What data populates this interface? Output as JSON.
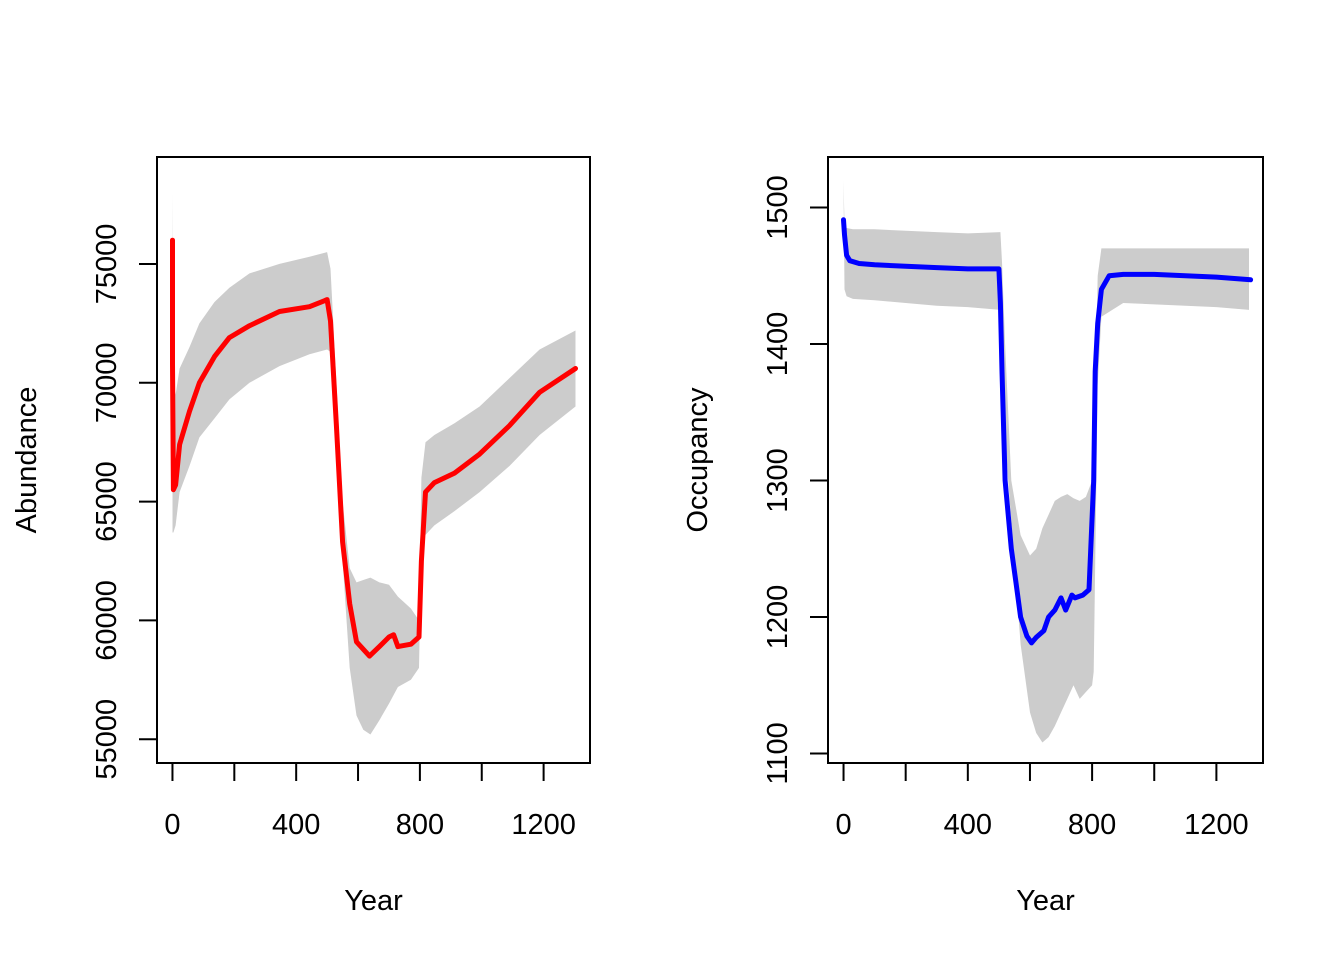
{
  "chart_data": [
    {
      "type": "line",
      "title": "",
      "xlabel": "Year",
      "ylabel": "Abundance",
      "xlim": [
        -50,
        1350
      ],
      "ylim": [
        54000,
        79500
      ],
      "xticks": [
        0,
        200,
        400,
        600,
        800,
        1000,
        1200
      ],
      "xtick_labels": [
        "0",
        "",
        "400",
        "",
        "800",
        "",
        "1200"
      ],
      "yticks": [
        55000,
        60000,
        65000,
        70000,
        75000
      ],
      "ytick_labels": [
        "55000",
        "60000",
        "65000",
        "70000",
        "75000"
      ],
      "grid": false,
      "legend": "none",
      "series": [
        {
          "name": "mean",
          "color": "#ff0000",
          "x": [
            0,
            0,
            3,
            10,
            23,
            55,
            87,
            136,
            184,
            249,
            346,
            443,
            491,
            500,
            511,
            530,
            550,
            573,
            595,
            637,
            669,
            700,
            715,
            729,
            771,
            797,
            805,
            818,
            847,
            912,
            993,
            1090,
            1187,
            1303
          ],
          "y": [
            76000,
            70800,
            65500,
            65700,
            67400,
            68800,
            70000,
            71100,
            71900,
            72400,
            73000,
            73200,
            73450,
            73500,
            72600,
            68200,
            63300,
            60700,
            59100,
            58500,
            58900,
            59300,
            59400,
            58900,
            59000,
            59300,
            62500,
            65400,
            65800,
            66200,
            67000,
            68200,
            69600,
            70600
          ]
        }
      ],
      "band": {
        "name": "interval",
        "color": "#cccccc",
        "x": [
          0,
          3,
          10,
          23,
          55,
          87,
          136,
          184,
          249,
          346,
          443,
          500,
          511,
          530,
          550,
          573,
          595,
          617,
          640,
          669,
          700,
          729,
          771,
          797,
          805,
          818,
          847,
          912,
          993,
          1090,
          1187,
          1303
        ],
        "lower": [
          63700,
          63700,
          64000,
          65400,
          66500,
          67700,
          68500,
          69300,
          70000,
          70700,
          71200,
          71400,
          71300,
          68000,
          62500,
          58000,
          56000,
          55400,
          55200,
          55800,
          56500,
          57200,
          57500,
          58000,
          63300,
          63600,
          64000,
          64600,
          65400,
          66500,
          67800,
          69000
        ],
        "upper": [
          78000,
          70000,
          69500,
          70600,
          71500,
          72500,
          73400,
          74000,
          74600,
          75000,
          75300,
          75500,
          74800,
          70000,
          65000,
          62200,
          61600,
          61700,
          61800,
          61600,
          61500,
          61000,
          60500,
          60000,
          66000,
          67500,
          67800,
          68300,
          69000,
          70200,
          71400,
          72200
        ]
      }
    },
    {
      "type": "line",
      "title": "",
      "xlabel": "Year",
      "ylabel": "Occupancy",
      "xlim": [
        -50,
        1350
      ],
      "ylim": [
        1093,
        1537
      ],
      "xticks": [
        0,
        200,
        400,
        600,
        800,
        1000,
        1200
      ],
      "xtick_labels": [
        "0",
        "",
        "400",
        "",
        "800",
        "",
        "1200"
      ],
      "yticks": [
        1100,
        1200,
        1300,
        1400,
        1500
      ],
      "ytick_labels": [
        "1100",
        "1200",
        "1300",
        "1400",
        "1500"
      ],
      "grid": false,
      "legend": "none",
      "series": [
        {
          "name": "mean",
          "color": "#0000ff",
          "x": [
            0,
            3,
            10,
            20,
            50,
            100,
            200,
            300,
            400,
            500,
            505,
            510,
            520,
            540,
            555,
            570,
            590,
            605,
            620,
            645,
            660,
            680,
            700,
            715,
            735,
            745,
            770,
            790,
            805,
            810,
            818,
            830,
            855,
            900,
            1000,
            1100,
            1200,
            1310
          ],
          "y": [
            1491,
            1480,
            1465,
            1461,
            1459,
            1458,
            1457,
            1456,
            1455,
            1455,
            1430,
            1380,
            1300,
            1250,
            1225,
            1200,
            1186,
            1181,
            1185,
            1190,
            1200,
            1205,
            1214,
            1205,
            1216,
            1214,
            1216,
            1220,
            1300,
            1380,
            1415,
            1440,
            1450,
            1451,
            1451,
            1450,
            1449,
            1447
          ]
        }
      ],
      "band": {
        "name": "interval",
        "color": "#cccccc",
        "x": [
          0,
          3,
          10,
          30,
          100,
          200,
          300,
          400,
          505,
          510,
          520,
          540,
          570,
          600,
          620,
          640,
          660,
          680,
          700,
          720,
          740,
          760,
          780,
          800,
          805,
          818,
          830,
          900,
          1000,
          1100,
          1200,
          1305
        ],
        "lower": [
          1520,
          1440,
          1435,
          1433,
          1432,
          1430,
          1428,
          1427,
          1425,
          1400,
          1330,
          1270,
          1180,
          1130,
          1115,
          1108,
          1112,
          1120,
          1130,
          1140,
          1150,
          1140,
          1145,
          1150,
          1160,
          1370,
          1420,
          1430,
          1429,
          1428,
          1427,
          1425
        ],
        "upper": [
          1520,
          1487,
          1485,
          1484,
          1484,
          1483,
          1482,
          1481,
          1482,
          1460,
          1400,
          1300,
          1260,
          1245,
          1250,
          1265,
          1275,
          1285,
          1288,
          1290,
          1287,
          1285,
          1288,
          1300,
          1320,
          1450,
          1470,
          1470,
          1470,
          1470,
          1470,
          1470
        ]
      }
    }
  ]
}
